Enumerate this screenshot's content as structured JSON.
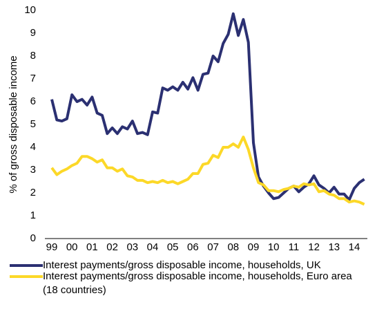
{
  "chart_data": {
    "type": "line",
    "y_label": "% of gross disposable income",
    "categories": [
      "99",
      null,
      null,
      null,
      "00",
      null,
      null,
      null,
      "01",
      null,
      null,
      null,
      "02",
      null,
      null,
      null,
      "03",
      null,
      null,
      null,
      "04",
      null,
      null,
      null,
      "05",
      null,
      null,
      null,
      "06",
      null,
      null,
      null,
      "07",
      null,
      null,
      null,
      "08",
      null,
      null,
      null,
      "09",
      null,
      null,
      null,
      "10",
      null,
      null,
      null,
      "11",
      null,
      null,
      null,
      "12",
      null,
      null,
      null,
      "13",
      null,
      null,
      null,
      "14",
      null,
      null
    ],
    "series": [
      {
        "name": "Interest payments/gross disposable income, households, UK",
        "color": "#2b3072",
        "values": [
          6.1,
          5.2,
          5.15,
          5.25,
          6.3,
          6.0,
          6.1,
          5.85,
          6.2,
          5.5,
          5.4,
          4.6,
          4.85,
          4.6,
          4.9,
          4.8,
          5.15,
          4.6,
          4.65,
          4.55,
          5.55,
          5.5,
          6.6,
          6.5,
          6.65,
          6.5,
          6.85,
          6.55,
          7.05,
          6.5,
          7.2,
          7.25,
          8.0,
          7.75,
          8.55,
          8.95,
          9.85,
          8.9,
          9.6,
          8.6,
          4.2,
          2.7,
          2.3,
          2.0,
          1.75,
          1.8,
          2.0,
          2.2,
          2.3,
          2.05,
          2.25,
          2.4,
          2.75,
          2.35,
          2.2,
          2.0,
          2.25,
          1.95,
          1.95,
          1.7,
          2.2,
          2.45,
          2.6
        ]
      },
      {
        "name": "Interest payments/gross disposable income, households, Euro area (18 countries)",
        "color": "#fcd828",
        "values": [
          3.1,
          2.8,
          2.95,
          3.05,
          3.2,
          3.3,
          3.6,
          3.6,
          3.5,
          3.35,
          3.45,
          3.1,
          3.1,
          2.95,
          3.05,
          2.75,
          2.7,
          2.55,
          2.55,
          2.45,
          2.5,
          2.45,
          2.55,
          2.45,
          2.5,
          2.4,
          2.5,
          2.6,
          2.85,
          2.85,
          3.25,
          3.3,
          3.65,
          3.55,
          4.0,
          4.0,
          4.15,
          4.0,
          4.45,
          3.9,
          3.1,
          2.45,
          2.35,
          2.1,
          2.1,
          2.05,
          2.15,
          2.2,
          2.3,
          2.25,
          2.4,
          2.35,
          2.4,
          2.05,
          2.1,
          1.95,
          1.9,
          1.75,
          1.75,
          1.6,
          1.65,
          1.6,
          1.5
        ]
      }
    ],
    "ylim": [
      0,
      10
    ],
    "yticks": [
      0,
      1,
      2,
      3,
      4,
      5,
      6,
      7,
      8,
      9,
      10
    ],
    "grid": false
  }
}
